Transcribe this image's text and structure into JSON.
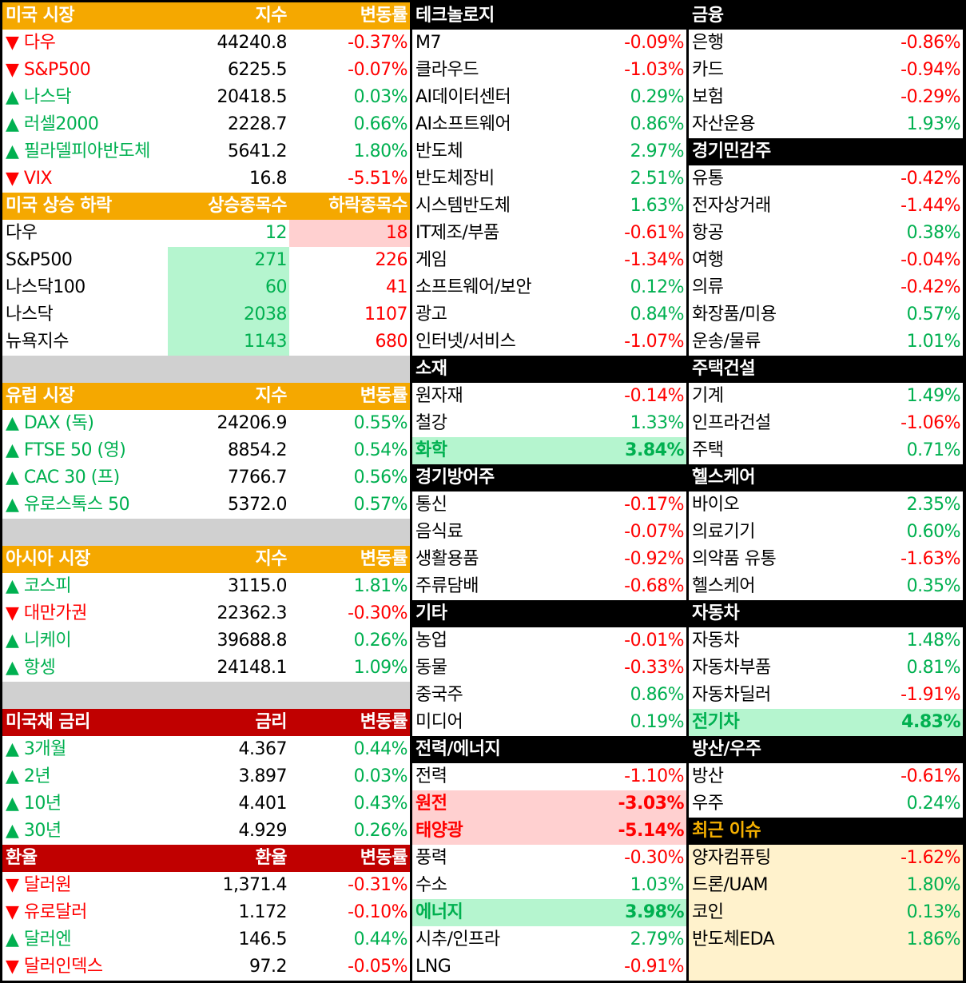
{
  "columns": [
    {
      "sections": [
        {
          "header": [
            "미국 시장",
            "지수",
            "변동률"
          ],
          "header_color": "orange",
          "kind": "index",
          "rows": [
            [
              "▼ 다우",
              "44240.8",
              "-0.37%"
            ],
            [
              "▼ S&P500",
              "6225.5",
              "-0.07%"
            ],
            [
              "▲ 나스닥",
              "20418.5",
              "0.03%"
            ],
            [
              "▲ 러셀2000",
              "2228.7",
              "0.66%"
            ],
            [
              "▲ 필라델피아반도체",
              "5641.2",
              "1.80%"
            ],
            [
              "▼ VIX",
              "16.8",
              "-5.51%"
            ]
          ]
        },
        {
          "header": [
            "미국 상승 하락",
            "상승종목수",
            "하락종목수"
          ],
          "header_color": "orange",
          "kind": "breadth",
          "rows": [
            [
              "다우",
              "12",
              "18"
            ],
            [
              "S&P500",
              "271",
              "226"
            ],
            [
              "나스닥100",
              "60",
              "41"
            ],
            [
              "나스닥",
              "2038",
              "1107"
            ],
            [
              "뉴욕지수",
              "1143",
              "680"
            ]
          ],
          "highlights": [
            "down",
            "up",
            "up",
            "up",
            "up"
          ],
          "gap_after": true
        },
        {
          "header": [
            "유럽 시장",
            "지수",
            "변동률"
          ],
          "header_color": "orange",
          "kind": "index",
          "rows": [
            [
              "▲ DAX (독)",
              "24206.9",
              "0.55%"
            ],
            [
              "▲ FTSE 50 (영)",
              "8854.2",
              "0.54%"
            ],
            [
              "▲ CAC 30 (프)",
              "7766.7",
              "0.56%"
            ],
            [
              "▲ 유로스톡스 50",
              "5372.0",
              "0.57%"
            ]
          ],
          "gap_after": true
        },
        {
          "header": [
            "아시아 시장",
            "지수",
            "변동률"
          ],
          "header_color": "orange",
          "kind": "index",
          "rows": [
            [
              "▲ 코스피",
              "3115.0",
              "1.81%"
            ],
            [
              "▼ 대만가권",
              "22362.3",
              "-0.30%"
            ],
            [
              "▲ 니케이",
              "39688.8",
              "0.26%"
            ],
            [
              "▲ 항셍",
              "24148.1",
              "1.09%"
            ]
          ],
          "gap_after": true
        },
        {
          "header": [
            "미국채 금리",
            "금리",
            "변동률"
          ],
          "header_color": "red",
          "kind": "index",
          "rows": [
            [
              "▲ 3개월",
              "4.367",
              "0.44%"
            ],
            [
              "▲ 2년",
              "3.897",
              "0.03%"
            ],
            [
              "▲ 10년",
              "4.401",
              "0.43%"
            ],
            [
              "▲ 30년",
              "4.929",
              "0.26%"
            ]
          ]
        },
        {
          "header": [
            "환율",
            "환율",
            "변동률"
          ],
          "header_color": "red",
          "kind": "index",
          "rows": [
            [
              "▼ 달러원",
              "1,371.4",
              "-0.31%"
            ],
            [
              "▼ 유로달러",
              "1.172",
              "-0.10%"
            ],
            [
              "▲ 달러엔",
              "146.5",
              "0.44%"
            ],
            [
              "▼ 달러인덱스",
              "97.2",
              "-0.05%"
            ]
          ]
        }
      ]
    },
    {
      "sections": [
        {
          "header": [
            "테크놀로지"
          ],
          "header_color": "black",
          "kind": "sector",
          "rows": [
            [
              "M7",
              "-0.09%"
            ],
            [
              "클라우드",
              "-1.03%"
            ],
            [
              "AI데이터센터",
              "0.29%"
            ],
            [
              "AI소프트웨어",
              "0.86%"
            ],
            [
              "반도체",
              "2.97%"
            ],
            [
              "반도체장비",
              "2.51%"
            ],
            [
              "시스템반도체",
              "1.63%"
            ],
            [
              "IT제조/부품",
              "-0.61%"
            ],
            [
              "게임",
              "-1.34%"
            ],
            [
              "소프트웨어/보안",
              "0.12%"
            ],
            [
              "광고",
              "0.84%"
            ],
            [
              "인터넷/서비스",
              "-1.07%"
            ]
          ]
        },
        {
          "header": [
            "소재"
          ],
          "header_color": "black",
          "kind": "sector",
          "rows": [
            [
              "원자재",
              "-0.14%"
            ],
            [
              "철강",
              "1.33%"
            ],
            [
              "화학",
              "3.84%"
            ]
          ],
          "highlights": [
            null,
            null,
            "up"
          ]
        },
        {
          "header": [
            "경기방어주"
          ],
          "header_color": "black",
          "kind": "sector",
          "rows": [
            [
              "통신",
              "-0.17%"
            ],
            [
              "음식료",
              "-0.07%"
            ],
            [
              "생활용품",
              "-0.92%"
            ],
            [
              "주류담배",
              "-0.68%"
            ]
          ]
        },
        {
          "header": [
            "기타"
          ],
          "header_color": "black",
          "kind": "sector",
          "rows": [
            [
              "농업",
              "-0.01%"
            ],
            [
              "동물",
              "-0.33%"
            ],
            [
              "중국주",
              "0.86%"
            ],
            [
              "미디어",
              "0.19%"
            ]
          ]
        },
        {
          "header": [
            "전력/에너지"
          ],
          "header_color": "black",
          "kind": "sector",
          "rows": [
            [
              "전력",
              "-1.10%"
            ],
            [
              "원전",
              "-3.03%"
            ],
            [
              "태양광",
              "-5.14%"
            ],
            [
              "풍력",
              "-0.30%"
            ],
            [
              "수소",
              "1.03%"
            ],
            [
              "에너지",
              "3.98%"
            ],
            [
              "시추/인프라",
              "2.79%"
            ],
            [
              "LNG",
              "-0.91%"
            ]
          ],
          "highlights": [
            null,
            "down",
            "down",
            null,
            null,
            "up",
            null,
            null
          ]
        }
      ]
    },
    {
      "sections": [
        {
          "header": [
            "금융"
          ],
          "header_color": "black",
          "kind": "sector",
          "rows": [
            [
              "은행",
              "-0.86%"
            ],
            [
              "카드",
              "-0.94%"
            ],
            [
              "보험",
              "-0.29%"
            ],
            [
              "자산운용",
              "1.93%"
            ]
          ]
        },
        {
          "header": [
            "경기민감주"
          ],
          "header_color": "black",
          "kind": "sector",
          "rows": [
            [
              "유통",
              "-0.42%"
            ],
            [
              "전자상거래",
              "-1.44%"
            ],
            [
              "항공",
              "0.38%"
            ],
            [
              "여행",
              "-0.04%"
            ],
            [
              "의류",
              "-0.42%"
            ],
            [
              "화장품/미용",
              "0.57%"
            ],
            [
              "운송/물류",
              "1.01%"
            ]
          ]
        },
        {
          "header": [
            "주택건설"
          ],
          "header_color": "black",
          "kind": "sector",
          "rows": [
            [
              "기계",
              "1.49%"
            ],
            [
              "인프라건설",
              "-1.06%"
            ],
            [
              "주택",
              "0.71%"
            ]
          ]
        },
        {
          "header": [
            "헬스케어"
          ],
          "header_color": "black",
          "kind": "sector",
          "rows": [
            [
              "바이오",
              "2.35%"
            ],
            [
              "의료기기",
              "0.60%"
            ],
            [
              "의약품 유통",
              "-1.63%"
            ],
            [
              "헬스케어",
              "0.35%"
            ]
          ]
        },
        {
          "header": [
            "자동차"
          ],
          "header_color": "black",
          "kind": "sector",
          "rows": [
            [
              "자동차",
              "1.48%"
            ],
            [
              "자동차부품",
              "0.81%"
            ],
            [
              "자동차딜러",
              "-1.91%"
            ],
            [
              "전기차",
              "4.83%"
            ]
          ],
          "highlights": [
            null,
            null,
            null,
            "up"
          ]
        },
        {
          "header": [
            "방산/우주"
          ],
          "header_color": "black",
          "kind": "sector",
          "rows": [
            [
              "방산",
              "-0.61%"
            ],
            [
              "우주",
              "0.24%"
            ]
          ]
        },
        {
          "header": [
            "최근 이슈"
          ],
          "header_color": "black",
          "header_text_color": "orange",
          "background": "cream",
          "kind": "sector",
          "rows": [
            [
              "양자컴퓨팅",
              "-1.62%"
            ],
            [
              "드론/UAM",
              "1.80%"
            ],
            [
              "코인",
              "0.13%"
            ],
            [
              "반도체EDA",
              "1.86%"
            ]
          ]
        }
      ]
    }
  ]
}
